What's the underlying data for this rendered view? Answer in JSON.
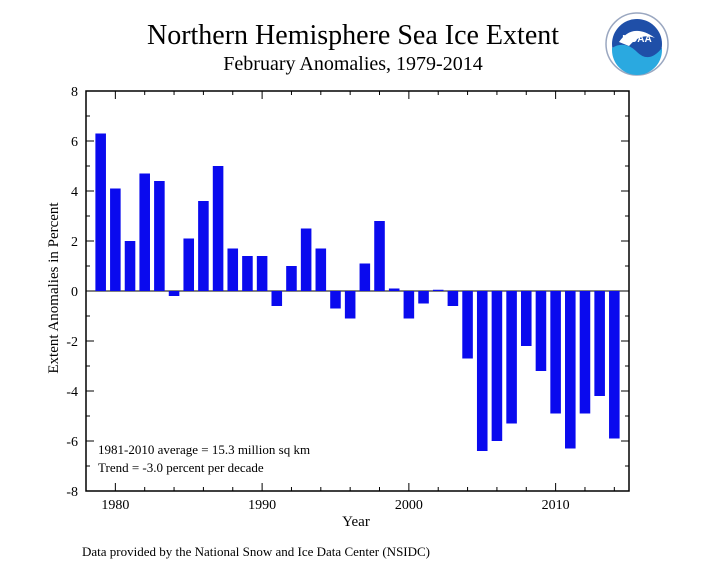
{
  "logo_text": "NOAA",
  "source_note": "Data provided by the National Snow and Ice Data Center (NSIDC)",
  "colors": {
    "bar": "#0a0aee",
    "axis": "#000000"
  },
  "chart_data": {
    "type": "bar",
    "title": "Northern Hemisphere Sea Ice Extent",
    "subtitle": "February Anomalies, 1979-2014",
    "xlabel": "Year",
    "ylabel": "Extent Anomalies in Percent",
    "xlim": [
      1978,
      2015
    ],
    "ylim": [
      -8,
      8
    ],
    "xticks": [
      1980,
      1990,
      2000,
      2010
    ],
    "yticks": [
      -8,
      -6,
      -4,
      -2,
      0,
      2,
      4,
      6,
      8
    ],
    "categories": [
      1979,
      1980,
      1981,
      1982,
      1983,
      1984,
      1985,
      1986,
      1987,
      1988,
      1989,
      1990,
      1991,
      1992,
      1993,
      1994,
      1995,
      1996,
      1997,
      1998,
      1999,
      2000,
      2001,
      2002,
      2003,
      2004,
      2005,
      2006,
      2007,
      2008,
      2009,
      2010,
      2011,
      2012,
      2013,
      2014
    ],
    "values": [
      6.3,
      4.1,
      2.0,
      4.7,
      4.4,
      -0.2,
      2.1,
      3.6,
      5.0,
      1.7,
      1.4,
      1.4,
      -0.6,
      1.0,
      2.5,
      1.7,
      -0.7,
      -1.1,
      1.1,
      2.8,
      0.1,
      -1.1,
      -0.5,
      0.05,
      -0.6,
      -2.7,
      -6.4,
      -6.0,
      -5.3,
      -2.2,
      -3.2,
      -4.9,
      -6.3,
      -4.9,
      -4.2,
      -5.9
    ],
    "annotations": [
      "1981-2010 average = 15.3 million sq km",
      "Trend =   -3.0 percent per decade"
    ],
    "grid": false
  }
}
